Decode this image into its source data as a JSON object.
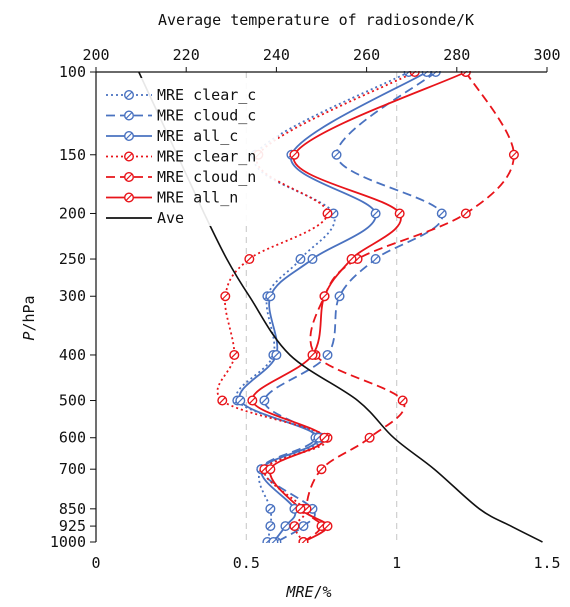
{
  "chart_data": {
    "type": "line",
    "title": "Average temperature of radiosonde/K",
    "xlabel": "MRE/%",
    "ylabel": "P/hPa",
    "x_bottom": {
      "ticks": [
        "0",
        "0.5",
        "1",
        "1.5"
      ],
      "range": [
        0,
        1.5
      ]
    },
    "x_top": {
      "ticks": [
        "200",
        "220",
        "240",
        "260",
        "280",
        "300"
      ],
      "range": [
        200,
        300
      ]
    },
    "y_axis": {
      "scale": "log-reversed",
      "ticks": [
        "100",
        "150",
        "200",
        "250",
        "300",
        "400",
        "500",
        "600",
        "700",
        "850",
        "925",
        "1000"
      ],
      "range": [
        100,
        1000
      ]
    },
    "pressure_levels": [
      100,
      150,
      200,
      250,
      300,
      400,
      500,
      600,
      700,
      850,
      925,
      1000
    ],
    "grid": {
      "vertical_dashed_at": [
        0.5,
        1.0
      ]
    },
    "legend_position": "top-left",
    "series": [
      {
        "name": "MRE clear_c",
        "color": "#4a72c0",
        "style": "dotted",
        "marker": "circle-slash",
        "values": [
          1.04,
          0.53,
          0.79,
          0.68,
          0.57,
          0.59,
          0.47,
          0.75,
          0.55,
          0.58,
          0.58,
          0.57
        ]
      },
      {
        "name": "MRE cloud_c",
        "color": "#4a72c0",
        "style": "dashed",
        "marker": "circle-slash",
        "values": [
          1.13,
          0.8,
          1.15,
          0.93,
          0.81,
          0.77,
          0.56,
          0.73,
          0.55,
          0.72,
          0.69,
          0.6
        ]
      },
      {
        "name": "MRE all_c",
        "color": "#4a72c0",
        "style": "solid",
        "marker": "circle-slash",
        "values": [
          1.1,
          0.65,
          0.93,
          0.72,
          0.58,
          0.6,
          0.48,
          0.74,
          0.55,
          0.66,
          0.63,
          0.59
        ]
      },
      {
        "name": "MRE clear_n",
        "color": "#e8141a",
        "style": "dotted",
        "marker": "circle-slash",
        "values": [
          1.06,
          0.54,
          0.77,
          0.51,
          0.43,
          0.46,
          0.42,
          0.77,
          0.56,
          0.69,
          0.66,
          0.69
        ]
      },
      {
        "name": "MRE cloud_n",
        "color": "#e8141a",
        "style": "dashed",
        "marker": "circle-slash",
        "values": [
          1.23,
          1.39,
          1.23,
          0.87,
          0.76,
          0.73,
          1.02,
          0.91,
          0.75,
          0.7,
          0.75,
          0.69
        ]
      },
      {
        "name": "MRE all_n",
        "color": "#e8141a",
        "style": "solid",
        "marker": "circle-slash",
        "values": [
          1.23,
          0.66,
          1.01,
          0.85,
          0.76,
          0.72,
          0.52,
          0.76,
          0.58,
          0.68,
          0.77,
          0.69
        ]
      },
      {
        "name": "Ave",
        "color": "#111111",
        "style": "solid",
        "marker": "none",
        "axis": "top",
        "values": [
          209.5,
          218,
          224,
          229,
          234,
          243,
          258,
          266,
          275,
          285,
          292,
          299
        ]
      }
    ]
  }
}
